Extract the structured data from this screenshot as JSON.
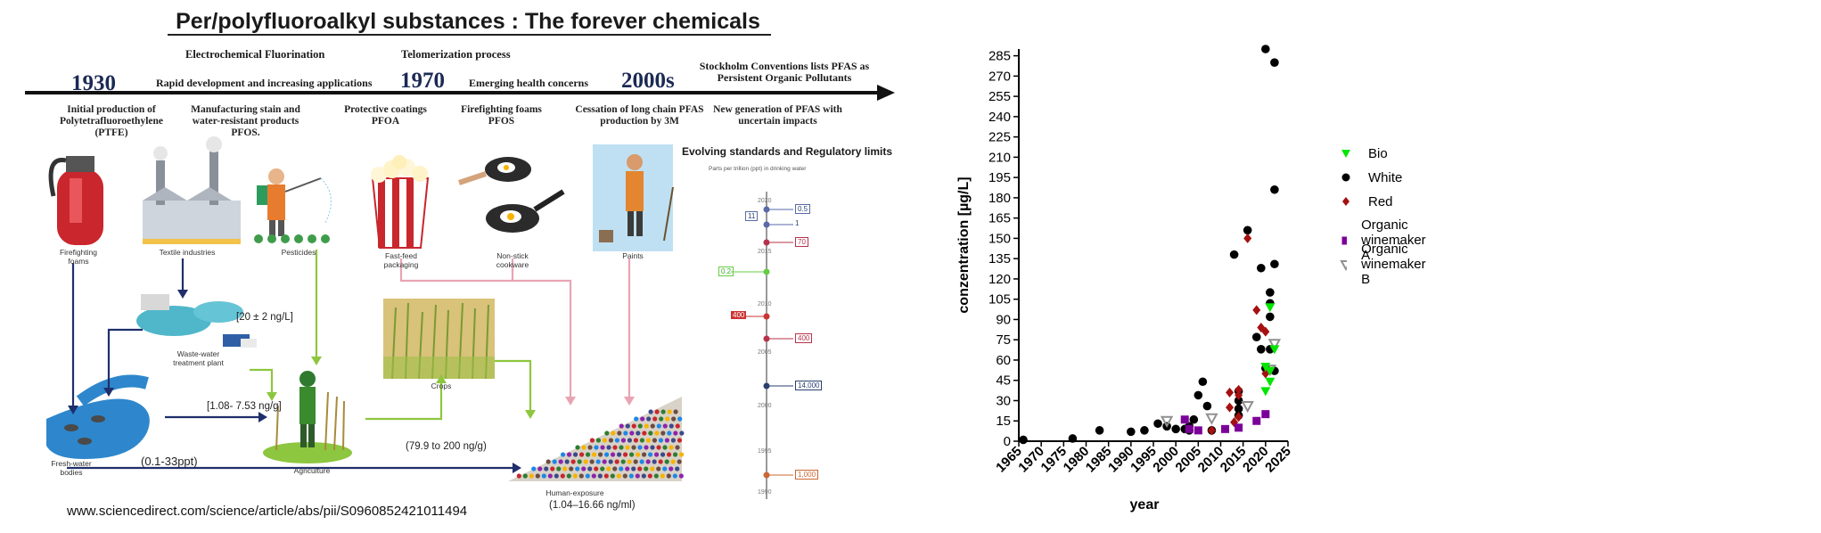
{
  "infographic": {
    "title": "Per/polyfluoroalkyl substances : The forever chemicals",
    "timeline": {
      "years": [
        "1930",
        "1970",
        "2000s"
      ],
      "above": [
        "Electrochemical Fluorination",
        "Rapid development and increasing applications",
        "Telomerization process",
        "Emerging health concerns",
        "Stockholm Conventions lists PFAS as Persistent Organic Pollutants"
      ],
      "below": [
        "Initial production of Polytetrafluoroethylene (PTFE)",
        "Manufacturing stain and water-resistant products PFOS.",
        "Protective coatings PFOA",
        "Firefighting foams PFOS",
        "Cessation of long chain PFAS production by 3M",
        "New generation of PFAS with uncertain impacts"
      ]
    },
    "sources": [
      "Firefighting foams",
      "Textile industries",
      "Pesticides",
      "Fast-feed packaging",
      "Non-stick cookware",
      "Paints"
    ],
    "nodes": {
      "wwtp": "Waste-water treatment plant",
      "freshwater": "Fresh-water bodies",
      "agriculture": "Agriculture",
      "crops": "Crops",
      "human": "Human-exposure"
    },
    "concentrations": {
      "wwtp": "[20 ± 2 ng/L]",
      "agri": "[1.08- 7.53 ng/g]",
      "water": "(0.1-33ppt)",
      "crops": "(79.9 to 200 ng/g)",
      "human": "(1.04–16.66 ng/ml)"
    },
    "regulatory": {
      "title": "Evolving standards and Regulatory limits",
      "subtitle": "Parts per trillion (ppt) in drinking water",
      "years": [
        "2020",
        "2015",
        "2010",
        "2005",
        "2000",
        "1995",
        "1990"
      ],
      "values": [
        "0.5",
        "11",
        "1",
        "70",
        "0.2",
        "400",
        "400",
        "14,000",
        "1,000"
      ]
    },
    "citation": "www.sciencedirect.com/science/article/abs/pii/S0960852421011494"
  },
  "chart_data": {
    "type": "scatter",
    "title": "",
    "xlabel": "year",
    "ylabel": "conzentration [µg/L]",
    "xlim": [
      1965,
      2025
    ],
    "ylim": [
      0,
      290
    ],
    "xticks": [
      1965,
      1970,
      1975,
      1980,
      1985,
      1990,
      1995,
      2000,
      2005,
      2010,
      2015,
      2020,
      2025
    ],
    "yticks": [
      0,
      15,
      30,
      45,
      60,
      75,
      90,
      105,
      120,
      135,
      150,
      165,
      180,
      195,
      210,
      225,
      240,
      255,
      270,
      285
    ],
    "grid": false,
    "legend_position": "right",
    "series": [
      {
        "name": "Bio",
        "marker": "triangle-down",
        "color": "#00e600",
        "points": [
          [
            2020,
            37
          ],
          [
            2020,
            55
          ],
          [
            2021,
            44
          ],
          [
            2021,
            52
          ],
          [
            2021,
            99
          ],
          [
            2022,
            68
          ]
        ]
      },
      {
        "name": "White",
        "marker": "circle",
        "color": "#000000",
        "points": [
          [
            1966,
            1
          ],
          [
            1977,
            2
          ],
          [
            1983,
            8
          ],
          [
            1990,
            7
          ],
          [
            1993,
            8
          ],
          [
            1996,
            13
          ],
          [
            1998,
            11
          ],
          [
            2000,
            9
          ],
          [
            2002,
            9
          ],
          [
            2003,
            11
          ],
          [
            2003,
            8
          ],
          [
            2004,
            16
          ],
          [
            2005,
            34
          ],
          [
            2006,
            44
          ],
          [
            2007,
            26
          ],
          [
            2008,
            8
          ],
          [
            2013,
            138
          ],
          [
            2014,
            19
          ],
          [
            2014,
            24
          ],
          [
            2014,
            30
          ],
          [
            2014,
            37
          ],
          [
            2016,
            156
          ],
          [
            2018,
            77
          ],
          [
            2019,
            68
          ],
          [
            2019,
            128
          ],
          [
            2020,
            290
          ],
          [
            2020,
            54
          ],
          [
            2021,
            68
          ],
          [
            2021,
            92
          ],
          [
            2021,
            102
          ],
          [
            2021,
            110
          ],
          [
            2022,
            280
          ],
          [
            2022,
            186
          ],
          [
            2022,
            131
          ],
          [
            2022,
            52
          ]
        ]
      },
      {
        "name": "Red",
        "marker": "diamond",
        "color": "#a51010",
        "points": [
          [
            2008,
            8
          ],
          [
            2012,
            25
          ],
          [
            2012,
            36
          ],
          [
            2013,
            14
          ],
          [
            2014,
            18
          ],
          [
            2014,
            34
          ],
          [
            2014,
            38
          ],
          [
            2016,
            150
          ],
          [
            2018,
            97
          ],
          [
            2019,
            84
          ],
          [
            2020,
            50
          ],
          [
            2020,
            81
          ]
        ]
      },
      {
        "name": "Organic winemaker A",
        "marker": "square",
        "color": "#7b0099",
        "points": [
          [
            2002,
            16
          ],
          [
            2003,
            9
          ],
          [
            2005,
            8
          ],
          [
            2011,
            9
          ],
          [
            2014,
            10
          ],
          [
            2018,
            15
          ],
          [
            2020,
            20
          ]
        ]
      },
      {
        "name": "Organic winemaker B",
        "marker": "triangle-down-open",
        "color": "#909090",
        "points": [
          [
            1998,
            15
          ],
          [
            2008,
            17
          ],
          [
            2016,
            26
          ],
          [
            2022,
            72
          ],
          [
            2021,
            53
          ]
        ]
      }
    ]
  }
}
